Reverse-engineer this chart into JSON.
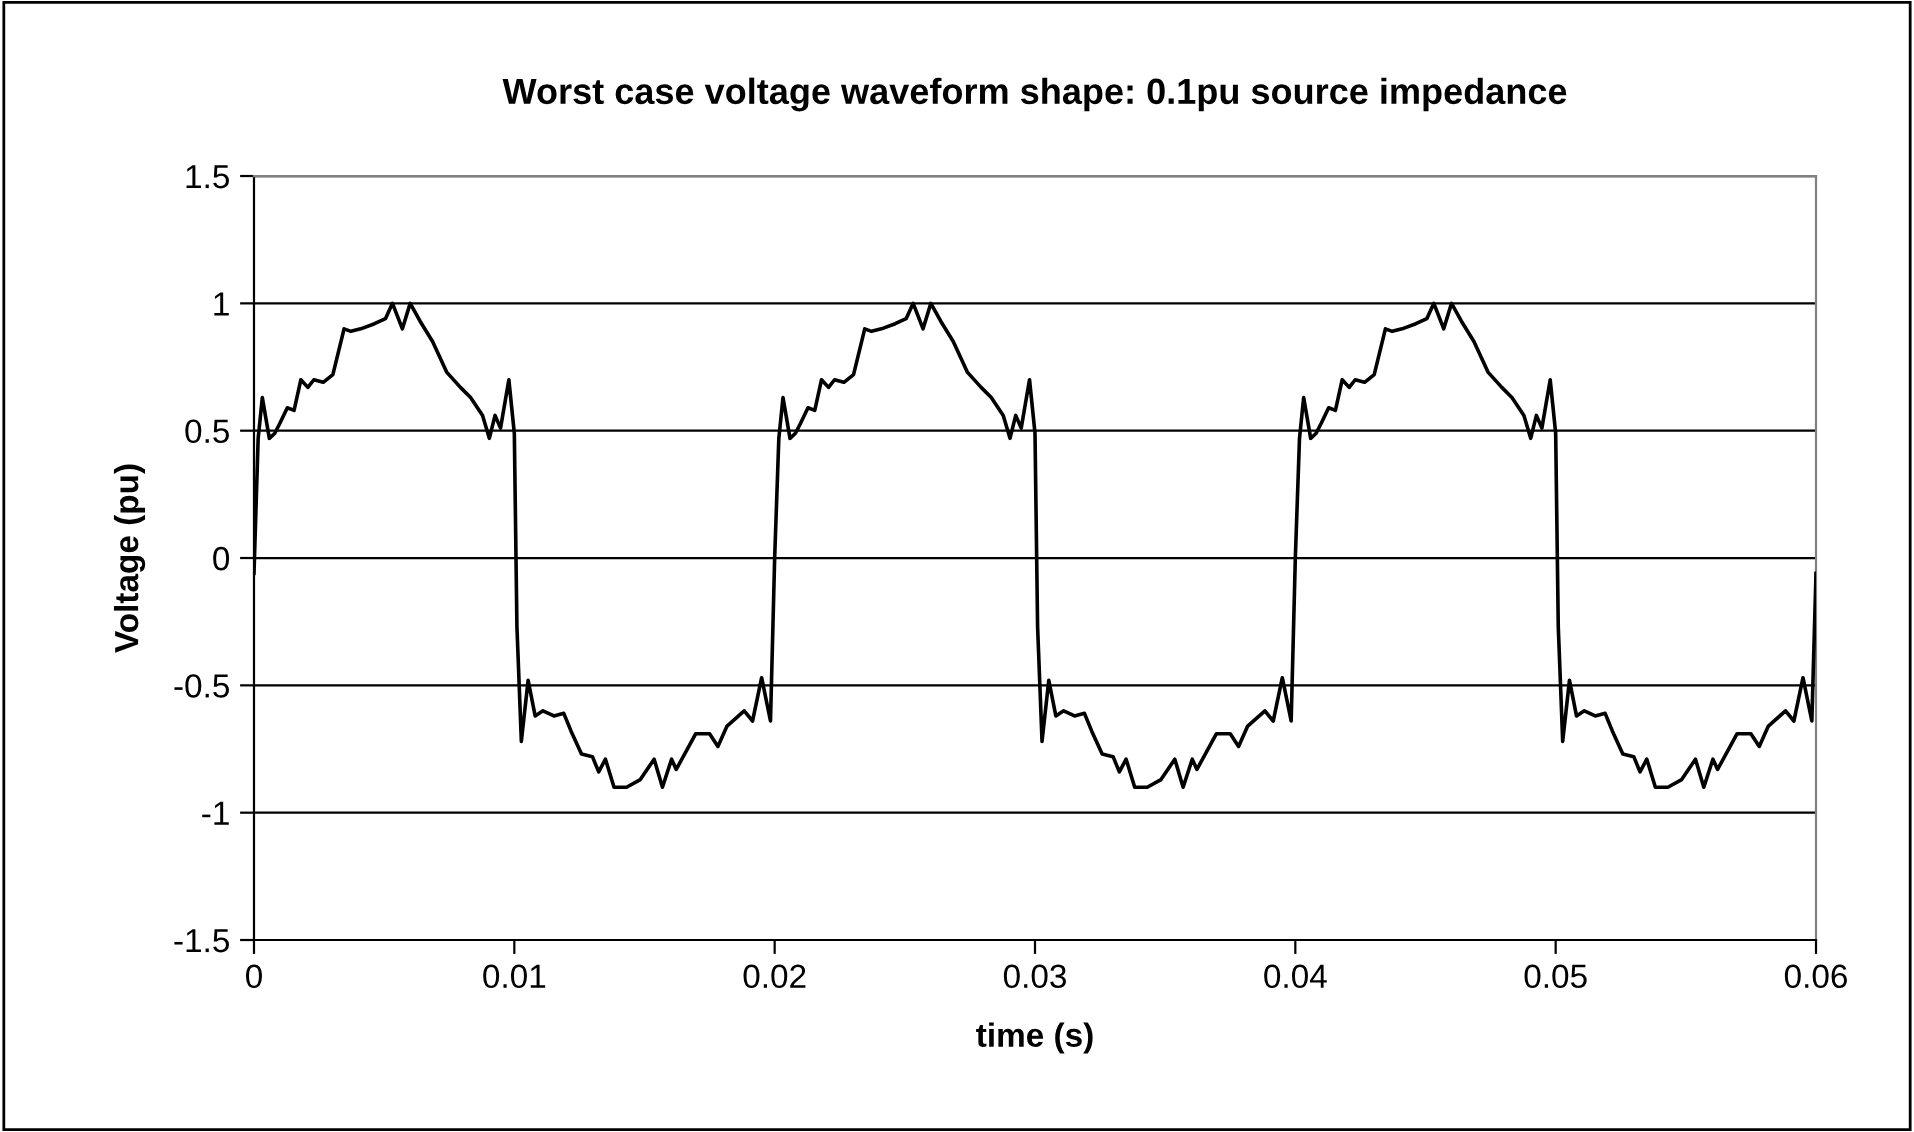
{
  "chart_data": {
    "type": "line",
    "title": "Worst case voltage waveform shape: 0.1pu source impedance",
    "xlabel": "time (s)",
    "ylabel": "Voltage (pu)",
    "xlim": [
      0,
      0.06
    ],
    "xticks": [
      0,
      0.01,
      0.02,
      0.03,
      0.04,
      0.05,
      0.06
    ],
    "ylim": [
      -1.5,
      1.5
    ],
    "yticks": [
      -1.5,
      -1,
      -0.5,
      0,
      0.5,
      1,
      1.5
    ],
    "grid": "y",
    "legend": false,
    "marker": "none",
    "line_style": "solid",
    "series": [
      {
        "color": "#000000",
        "x": [
          0,
          0.00016,
          0.00032,
          0.00059,
          0.0008,
          0.001,
          0.00128,
          0.00154,
          0.0018,
          0.00207,
          0.0023,
          0.00266,
          0.00303,
          0.00346,
          0.00372,
          0.0041,
          0.00463,
          0.00505,
          0.00532,
          0.0057,
          0.006,
          0.00638,
          0.00686,
          0.0074,
          0.00793,
          0.00832,
          0.00878,
          0.00904,
          0.00926,
          0.00947,
          0.00979,
          0.01,
          0.0101,
          0.01027,
          0.01053,
          0.0108,
          0.0111,
          0.01152,
          0.0119,
          0.01218,
          0.01258,
          0.013,
          0.01324,
          0.0135,
          0.01383,
          0.01431,
          0.01484,
          0.01537,
          0.01569,
          0.01604,
          0.01622,
          0.01697,
          0.0175,
          0.01782,
          0.01817,
          0.01883,
          0.01915,
          0.0195,
          0.01984,
          0.02,
          0.02016,
          0.02032,
          0.02059,
          0.0208,
          0.021,
          0.02128,
          0.02154,
          0.0218,
          0.02207,
          0.0223,
          0.02266,
          0.02303,
          0.02346,
          0.02372,
          0.0241,
          0.02463,
          0.02505,
          0.02532,
          0.0257,
          0.026,
          0.02638,
          0.02686,
          0.0274,
          0.02793,
          0.02832,
          0.02878,
          0.02904,
          0.02926,
          0.02947,
          0.02979,
          0.03,
          0.0301,
          0.03027,
          0.03053,
          0.0308,
          0.0311,
          0.03152,
          0.0319,
          0.03218,
          0.03258,
          0.033,
          0.03324,
          0.0335,
          0.03383,
          0.03431,
          0.03484,
          0.03537,
          0.03569,
          0.03604,
          0.03622,
          0.03697,
          0.0375,
          0.03782,
          0.03817,
          0.03883,
          0.03915,
          0.0395,
          0.03984,
          0.04,
          0.04016,
          0.04032,
          0.04059,
          0.0408,
          0.041,
          0.04128,
          0.04154,
          0.0418,
          0.04207,
          0.0423,
          0.04266,
          0.04303,
          0.04346,
          0.04372,
          0.0441,
          0.04463,
          0.04505,
          0.04532,
          0.0457,
          0.046,
          0.04638,
          0.04686,
          0.0474,
          0.04793,
          0.04832,
          0.04878,
          0.04904,
          0.04926,
          0.04947,
          0.04979,
          0.05,
          0.0501,
          0.05027,
          0.05053,
          0.0508,
          0.0511,
          0.05152,
          0.0519,
          0.05218,
          0.05258,
          0.053,
          0.05324,
          0.0535,
          0.05383,
          0.05431,
          0.05484,
          0.05537,
          0.05569,
          0.05604,
          0.05622,
          0.05697,
          0.0575,
          0.05782,
          0.05817,
          0.05883,
          0.05915,
          0.0595,
          0.05984,
          0.06
        ],
        "values": [
          -0.06,
          0.47,
          0.63,
          0.47,
          0.49,
          0.53,
          0.59,
          0.58,
          0.7,
          0.67,
          0.7,
          0.69,
          0.72,
          0.9,
          0.89,
          0.9,
          0.92,
          0.94,
          1.0,
          0.9,
          1.0,
          0.93,
          0.85,
          0.73,
          0.67,
          0.63,
          0.56,
          0.47,
          0.56,
          0.51,
          0.7,
          0.49,
          -0.27,
          -0.72,
          -0.48,
          -0.62,
          -0.6,
          -0.62,
          -0.61,
          -0.68,
          -0.77,
          -0.78,
          -0.84,
          -0.79,
          -0.9,
          -0.9,
          -0.87,
          -0.79,
          -0.9,
          -0.79,
          -0.83,
          -0.69,
          -0.69,
          -0.74,
          -0.66,
          -0.6,
          -0.64,
          -0.47,
          -0.64,
          0.0,
          0.47,
          0.63,
          0.47,
          0.49,
          0.53,
          0.59,
          0.58,
          0.7,
          0.67,
          0.7,
          0.69,
          0.72,
          0.9,
          0.89,
          0.9,
          0.92,
          0.94,
          1.0,
          0.9,
          1.0,
          0.93,
          0.85,
          0.73,
          0.67,
          0.63,
          0.56,
          0.47,
          0.56,
          0.51,
          0.7,
          0.49,
          -0.27,
          -0.72,
          -0.48,
          -0.62,
          -0.6,
          -0.62,
          -0.61,
          -0.68,
          -0.77,
          -0.78,
          -0.84,
          -0.79,
          -0.9,
          -0.9,
          -0.87,
          -0.79,
          -0.9,
          -0.79,
          -0.83,
          -0.69,
          -0.69,
          -0.74,
          -0.66,
          -0.6,
          -0.64,
          -0.47,
          -0.64,
          0.0,
          0.47,
          0.63,
          0.47,
          0.49,
          0.53,
          0.59,
          0.58,
          0.7,
          0.67,
          0.7,
          0.69,
          0.72,
          0.9,
          0.89,
          0.9,
          0.92,
          0.94,
          1.0,
          0.9,
          1.0,
          0.93,
          0.85,
          0.73,
          0.67,
          0.63,
          0.56,
          0.47,
          0.56,
          0.51,
          0.7,
          0.49,
          -0.27,
          -0.72,
          -0.48,
          -0.62,
          -0.6,
          -0.62,
          -0.61,
          -0.68,
          -0.77,
          -0.78,
          -0.84,
          -0.79,
          -0.9,
          -0.9,
          -0.87,
          -0.79,
          -0.9,
          -0.79,
          -0.83,
          -0.69,
          -0.69,
          -0.74,
          -0.66,
          -0.6,
          -0.64,
          -0.47,
          -0.64,
          -0.06
        ]
      }
    ]
  }
}
